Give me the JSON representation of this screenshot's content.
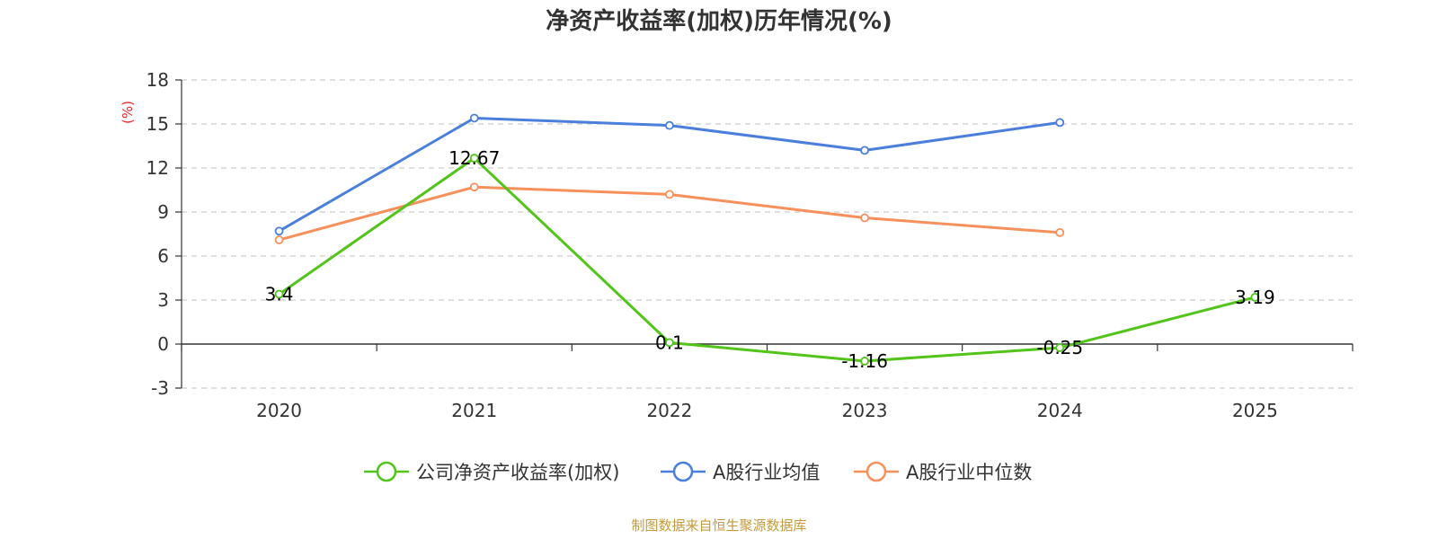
{
  "chart_data": {
    "type": "line",
    "title": "净资产收益率(加权)历年情况(%)",
    "ylabel": "(%)",
    "xlabel": "",
    "categories": [
      "2020",
      "2021",
      "2022",
      "2023",
      "2024",
      "2025"
    ],
    "ylim": [
      -3,
      18
    ],
    "yticks": [
      -3,
      0,
      3,
      6,
      9,
      12,
      15,
      18
    ],
    "grid": true,
    "legend_position": "bottom",
    "series": [
      {
        "name": "公司净资产收益率(加权)",
        "color": "#52c41a",
        "values": [
          3.4,
          12.67,
          0.1,
          -1.16,
          -0.25,
          3.19
        ],
        "labels": [
          "3.4",
          "12.67",
          "0.1",
          "-1.16",
          "-0.25",
          "3.19"
        ]
      },
      {
        "name": "A股行业均值",
        "color": "#4a7fdb",
        "values": [
          7.7,
          15.4,
          14.9,
          13.2,
          15.1,
          null
        ]
      },
      {
        "name": "A股行业中位数",
        "color": "#f7905a",
        "values": [
          7.1,
          10.7,
          10.2,
          8.6,
          7.6,
          null
        ]
      }
    ],
    "ylabel_color": "#e8262c",
    "source": "制图数据来自恒生聚源数据库",
    "source_color": "#c39b3c"
  }
}
